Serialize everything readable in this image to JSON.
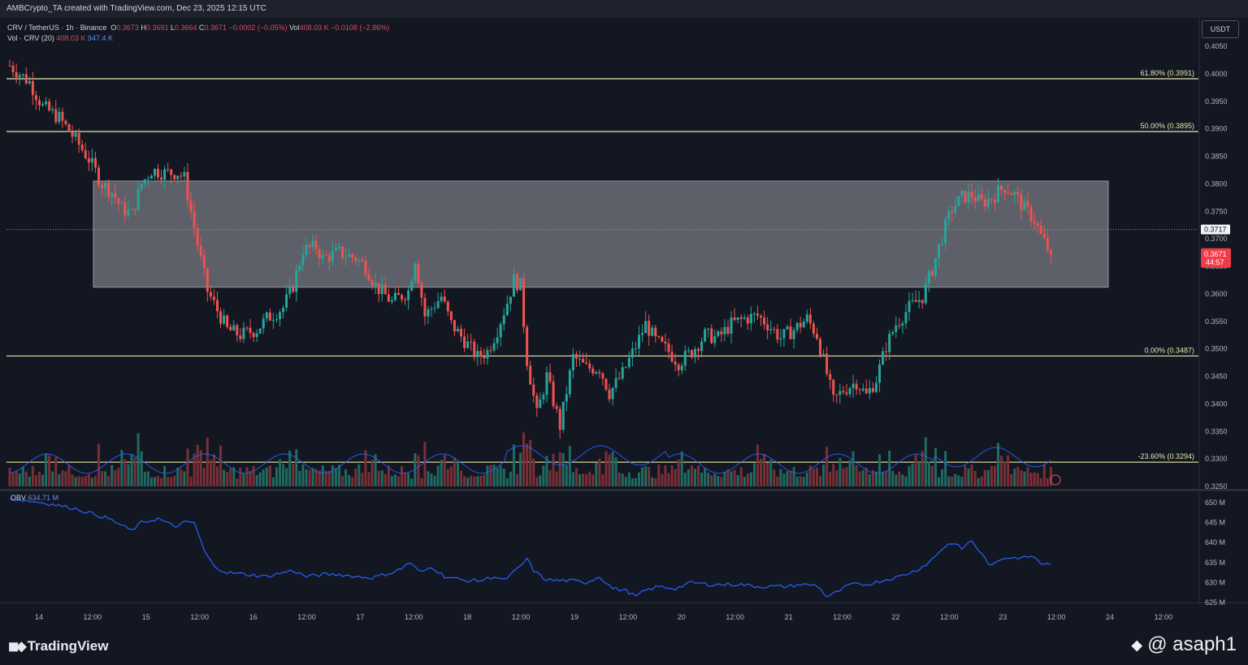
{
  "header": {
    "text": "AMBCrypto_TA created with TradingView.com, Dec 23, 2025 12:15 UTC"
  },
  "legend": {
    "symbol": "CRV / TetherUS · 1h · Binance",
    "o_label": "O",
    "o": "0.3673",
    "h_label": "H",
    "h": "0.3691",
    "l_label": "L",
    "l": "0.3664",
    "c_label": "C",
    "c": "0.3671",
    "change": "−0.0002 (−0.05%)",
    "vol_label": "Vol",
    "vol": "408.03 K",
    "vol_change": "−0.0108 (−2.86%)",
    "vol_ind": "Vol · CRV (20)",
    "vol_ind_v1": "408.03 K",
    "vol_ind_v2": "947.4 K",
    "obv_label": "OBV",
    "obv_value": "634.71 M"
  },
  "currency": "USDT",
  "colors": {
    "up": "#26a69a",
    "down": "#ef5350",
    "fib": "#e8e5a8",
    "zone": "#787b86",
    "obv": "#2962ff",
    "vol_ma": "#2962ff",
    "price_label": "#ef3b4a",
    "background": "#131722"
  },
  "chart_data": {
    "type": "candlestick",
    "symbol": "CRV/USDT",
    "interval": "1h",
    "exchange": "Binance",
    "price_axis": {
      "min": 0.325,
      "max": 0.405,
      "ticks": [
        "0.4050",
        "0.4000",
        "0.3950",
        "0.3900",
        "0.3850",
        "0.3800",
        "0.3750",
        "0.3700",
        "0.3650",
        "0.3600",
        "0.3550",
        "0.3500",
        "0.3450",
        "0.3400",
        "0.3350",
        "0.3300",
        "0.3250"
      ]
    },
    "time_axis": {
      "labels": [
        "14",
        "12:00",
        "15",
        "12:00",
        "16",
        "12:00",
        "17",
        "12:00",
        "18",
        "12:00",
        "19",
        "12:00",
        "20",
        "12:00",
        "21",
        "12:00",
        "22",
        "12:00",
        "23",
        "12:00",
        "24",
        "12:00"
      ]
    },
    "fib_levels": [
      {
        "label": "61.80% (0.3991)",
        "value": 0.3991
      },
      {
        "label": "50.00% (0.3895)",
        "value": 0.3895
      },
      {
        "label": "0.00% (0.3487)",
        "value": 0.3487
      },
      {
        "label": "-23.60% (0.3294)",
        "value": 0.3294
      }
    ],
    "zone": {
      "top": 0.3805,
      "bottom": 0.3612
    },
    "current_price": {
      "value": 0.3671,
      "label": "0.3671",
      "countdown": "44:57"
    },
    "reference_price": {
      "value": 0.3717,
      "label": "0.3717"
    },
    "price_path": [
      [
        0,
        0.4015
      ],
      [
        3,
        0.4
      ],
      [
        6,
        0.3985
      ],
      [
        10,
        0.394
      ],
      [
        15,
        0.392
      ],
      [
        20,
        0.388
      ],
      [
        24,
        0.3845
      ],
      [
        28,
        0.38
      ],
      [
        31,
        0.3785
      ],
      [
        34,
        0.3755
      ],
      [
        37,
        0.3745
      ],
      [
        40,
        0.38
      ],
      [
        43,
        0.3825
      ],
      [
        47,
        0.382
      ],
      [
        51,
        0.382
      ],
      [
        53,
        0.381
      ],
      [
        57,
        0.369
      ],
      [
        60,
        0.3605
      ],
      [
        63,
        0.357
      ],
      [
        66,
        0.3535
      ],
      [
        70,
        0.3525
      ],
      [
        75,
        0.3535
      ],
      [
        78,
        0.3555
      ],
      [
        83,
        0.3575
      ],
      [
        86,
        0.3615
      ],
      [
        89,
        0.368
      ],
      [
        93,
        0.3685
      ],
      [
        95,
        0.3665
      ],
      [
        100,
        0.3675
      ],
      [
        105,
        0.3665
      ],
      [
        108,
        0.365
      ],
      [
        111,
        0.3615
      ],
      [
        116,
        0.3585
      ],
      [
        121,
        0.3605
      ],
      [
        123,
        0.3665
      ],
      [
        126,
        0.356
      ],
      [
        131,
        0.3595
      ],
      [
        134,
        0.3545
      ],
      [
        138,
        0.3515
      ],
      [
        142,
        0.3485
      ],
      [
        145,
        0.3495
      ],
      [
        148,
        0.3535
      ],
      [
        151,
        0.3585
      ],
      [
        153,
        0.3625
      ],
      [
        155,
        0.3615
      ],
      [
        157,
        0.348
      ],
      [
        160,
        0.338
      ],
      [
        163,
        0.345
      ],
      [
        167,
        0.336
      ],
      [
        171,
        0.3485
      ],
      [
        175,
        0.3465
      ],
      [
        179,
        0.3465
      ],
      [
        182,
        0.342
      ],
      [
        186,
        0.3455
      ],
      [
        190,
        0.3505
      ],
      [
        193,
        0.3545
      ],
      [
        196,
        0.3515
      ],
      [
        200,
        0.3495
      ],
      [
        203,
        0.3475
      ],
      [
        207,
        0.3495
      ],
      [
        211,
        0.3525
      ],
      [
        215,
        0.352
      ],
      [
        219,
        0.3545
      ],
      [
        223,
        0.3555
      ],
      [
        227,
        0.356
      ],
      [
        230,
        0.3545
      ],
      [
        234,
        0.352
      ],
      [
        238,
        0.3535
      ],
      [
        242,
        0.3555
      ],
      [
        245,
        0.3525
      ],
      [
        248,
        0.3455
      ],
      [
        250,
        0.3405
      ],
      [
        253,
        0.3425
      ],
      [
        257,
        0.344
      ],
      [
        260,
        0.3415
      ],
      [
        263,
        0.3445
      ],
      [
        266,
        0.3505
      ],
      [
        269,
        0.3545
      ],
      [
        273,
        0.3575
      ],
      [
        277,
        0.3595
      ],
      [
        280,
        0.3645
      ],
      [
        283,
        0.3705
      ],
      [
        286,
        0.3755
      ],
      [
        289,
        0.3775
      ],
      [
        292,
        0.378
      ],
      [
        295,
        0.3765
      ],
      [
        298,
        0.3775
      ],
      [
        302,
        0.3795
      ],
      [
        305,
        0.378
      ],
      [
        308,
        0.3755
      ],
      [
        311,
        0.3735
      ],
      [
        313,
        0.3705
      ],
      [
        316,
        0.3671
      ]
    ],
    "volume_axis_note": "volume pane shares bottom of price pane",
    "volume_ma_shape": "flat ~ 0.33 level with bumps near 12:00 each day",
    "obv": {
      "axis_ticks": [
        "650 M",
        "645 M",
        "640 M",
        "635 M",
        "630 M",
        "625 M"
      ],
      "min": 624,
      "max": 652,
      "path": [
        [
          0,
          651
        ],
        [
          10,
          650
        ],
        [
          20,
          648.5
        ],
        [
          30,
          646
        ],
        [
          37,
          643
        ],
        [
          40,
          645
        ],
        [
          45,
          646
        ],
        [
          50,
          644
        ],
        [
          53,
          645
        ],
        [
          56,
          645
        ],
        [
          59,
          638
        ],
        [
          62,
          634
        ],
        [
          66,
          632.5
        ],
        [
          72,
          632
        ],
        [
          78,
          631.5
        ],
        [
          83,
          632.5
        ],
        [
          86,
          633
        ],
        [
          90,
          631.5
        ],
        [
          95,
          632
        ],
        [
          100,
          632
        ],
        [
          105,
          631.5
        ],
        [
          110,
          631.2
        ],
        [
          116,
          632.5
        ],
        [
          119,
          633.5
        ],
        [
          121,
          635
        ],
        [
          125,
          632.5
        ],
        [
          128,
          634
        ],
        [
          132,
          631.5
        ],
        [
          138,
          630.5
        ],
        [
          143,
          630.5
        ],
        [
          147,
          631.5
        ],
        [
          150,
          630.5
        ],
        [
          155,
          634
        ],
        [
          157,
          636
        ],
        [
          159,
          633
        ],
        [
          162,
          631
        ],
        [
          165,
          630.5
        ],
        [
          170,
          630.5
        ],
        [
          175,
          630
        ],
        [
          179,
          631.5
        ],
        [
          183,
          628.5
        ],
        [
          187,
          628
        ],
        [
          190,
          626.5
        ],
        [
          193,
          628
        ],
        [
          197,
          629
        ],
        [
          202,
          628.5
        ],
        [
          207,
          630
        ],
        [
          212,
          629.5
        ],
        [
          217,
          629.5
        ],
        [
          222,
          629.5
        ],
        [
          227,
          629
        ],
        [
          232,
          629
        ],
        [
          236,
          629
        ],
        [
          240,
          629.5
        ],
        [
          245,
          629.3
        ],
        [
          248,
          626.5
        ],
        [
          251,
          627.5
        ],
        [
          255,
          629.5
        ],
        [
          260,
          629.5
        ],
        [
          265,
          630.5
        ],
        [
          270,
          631.5
        ],
        [
          275,
          633
        ],
        [
          279,
          635
        ],
        [
          283,
          638.5
        ],
        [
          286,
          640
        ],
        [
          289,
          638.5
        ],
        [
          292,
          640.5
        ],
        [
          295,
          637
        ],
        [
          298,
          634
        ],
        [
          301,
          636
        ],
        [
          304,
          636.5
        ],
        [
          307,
          636
        ],
        [
          310,
          637
        ],
        [
          313,
          635
        ],
        [
          316,
          634.7
        ]
      ]
    }
  },
  "footer": {
    "brand": "TradingView",
    "watermark": "@ asaph1"
  }
}
